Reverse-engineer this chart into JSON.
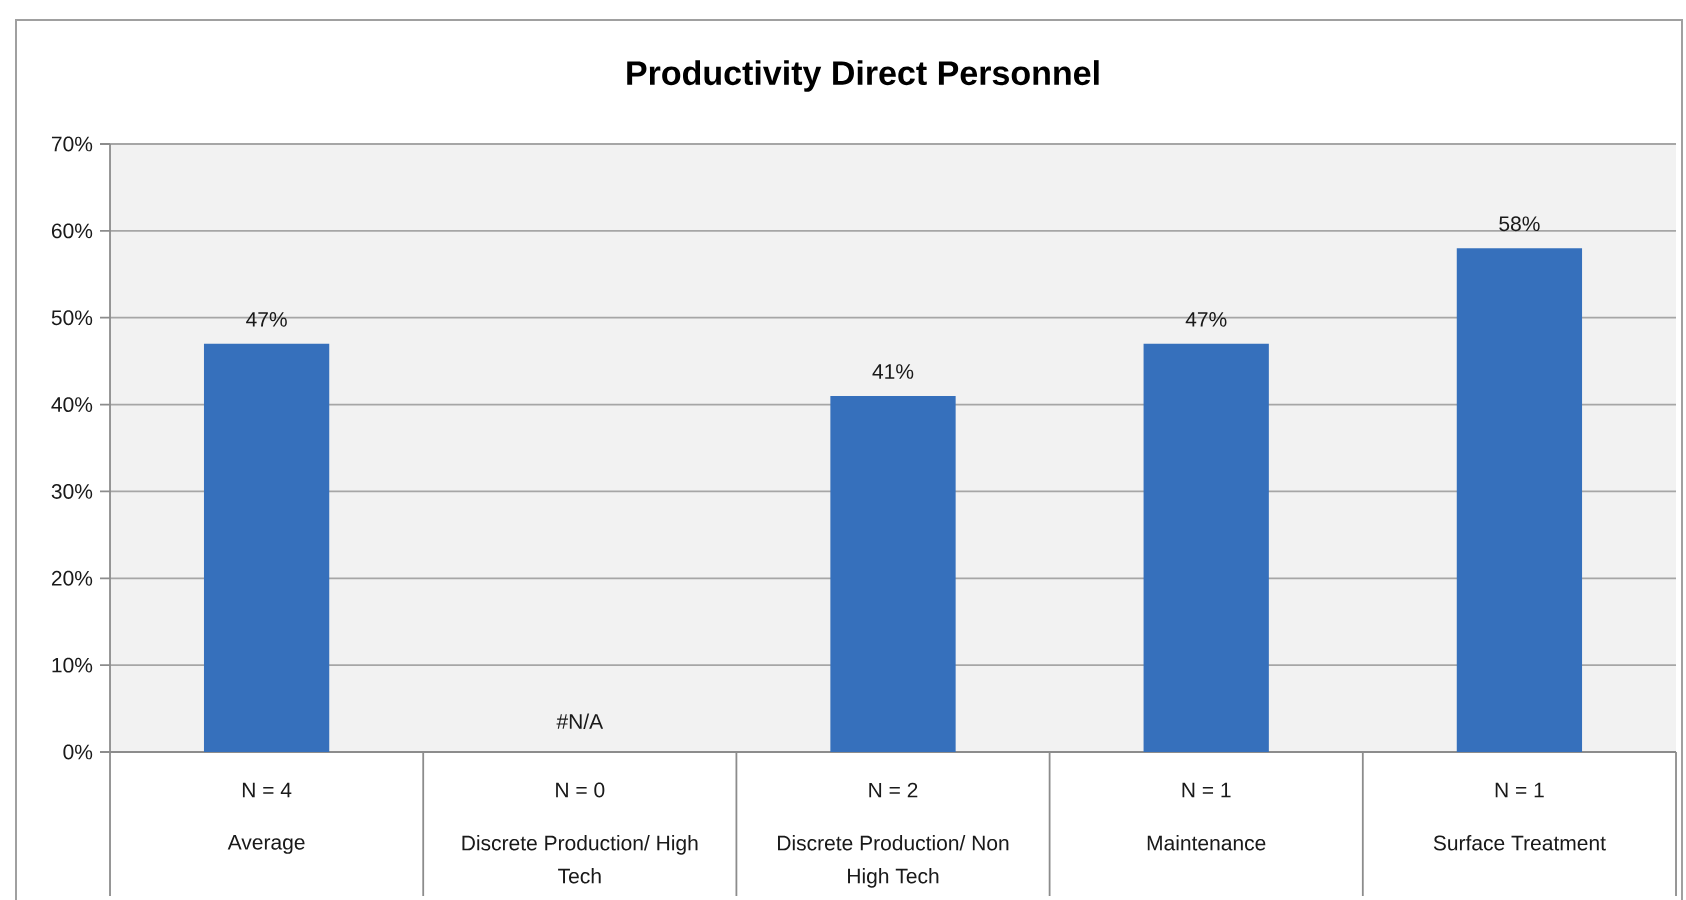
{
  "chart_data": {
    "type": "bar",
    "title": "Productivity Direct Personnel",
    "categories": [
      "Average",
      "Discrete Production/ High Tech",
      "Discrete Production/ Non High Tech",
      "Maintenance",
      "Surface Treatment"
    ],
    "values": [
      47,
      null,
      41,
      47,
      58
    ],
    "value_labels": [
      "47%",
      "#N/A",
      "41%",
      "47%",
      "58%"
    ],
    "color": "#3670bc",
    "ylim": [
      0,
      70
    ],
    "yticks": [
      {
        "value": 0,
        "label": "0%"
      },
      {
        "value": 10,
        "label": "10%"
      },
      {
        "value": 20,
        "label": "20%"
      },
      {
        "value": 30,
        "label": "30%"
      },
      {
        "value": 40,
        "label": "40%"
      },
      {
        "value": 50,
        "label": "50%"
      },
      {
        "value": 60,
        "label": "60%"
      },
      {
        "value": 70,
        "label": "70%"
      }
    ],
    "grid": "y",
    "annotations": [
      "N = 4",
      "N = 0",
      "N = 2",
      "N = 1",
      "N = 1"
    ]
  }
}
